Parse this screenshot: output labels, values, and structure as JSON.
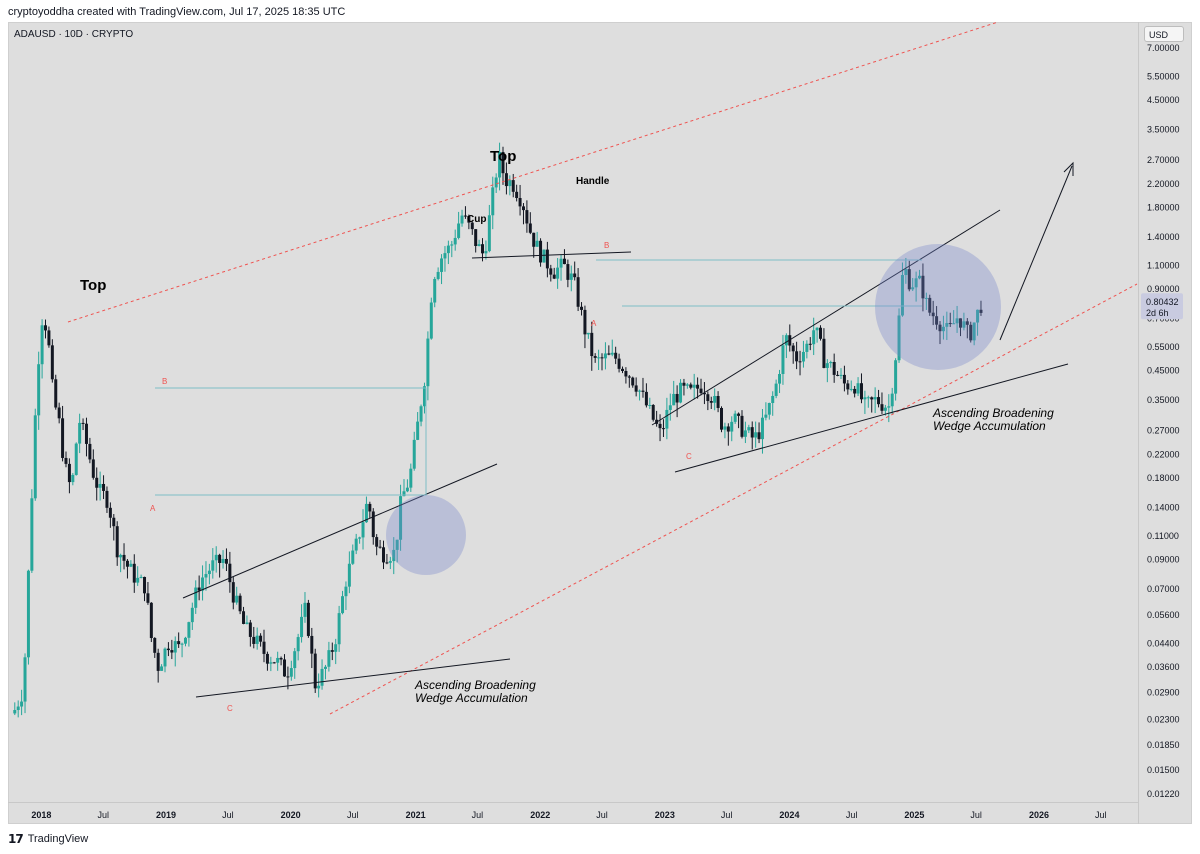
{
  "header": {
    "text": "cryptoyoddha created with TradingView.com, Jul 17, 2025 18:35 UTC"
  },
  "symbol": {
    "label": "ADAUSD · 10D · CRYPTO"
  },
  "price_axis": {
    "currency": "USD"
  },
  "current_price": {
    "value": "0.80432",
    "countdown": "2d 6h"
  },
  "footer": {
    "logo_mark": "17",
    "brand": "TradingView"
  },
  "colors": {
    "background": "#dedede",
    "up_candle": "#26a69a",
    "down_candle": "#131722",
    "channel_line": "#ef5350",
    "trend_line": "#131722",
    "highlight_circle": "#7986cb",
    "box_line": "#7fbfc6"
  },
  "chart_data": {
    "type": "candlestick",
    "y_scale": "log",
    "ylim": [
      0.0116,
      8.6
    ],
    "y_ticks": [
      7.0,
      5.5,
      4.5,
      3.5,
      2.7,
      2.2,
      1.8,
      1.4,
      1.1,
      0.9,
      0.7,
      0.55,
      0.45,
      0.35,
      0.27,
      0.22,
      0.18,
      0.14,
      0.11,
      0.09,
      0.07,
      0.056,
      0.044,
      0.036,
      0.029,
      0.023,
      0.0185,
      0.015,
      0.0122
    ],
    "y_tick_labels": [
      "7.00000",
      "5.50000",
      "4.50000",
      "3.50000",
      "2.70000",
      "2.20000",
      "1.80000",
      "1.40000",
      "1.10000",
      "0.90000",
      "0.70000",
      "0.55000",
      "0.45000",
      "0.35000",
      "0.27000",
      "0.22000",
      "0.18000",
      "0.14000",
      "0.11000",
      "0.09000",
      "0.07000",
      "0.05600",
      "0.04400",
      "0.03600",
      "0.02900",
      "0.02300",
      "0.01850",
      "0.01500",
      "0.01220"
    ],
    "x_ticks": [
      "2018-01-01",
      "2018-07-01",
      "2019-01-01",
      "2019-07-01",
      "2020-01-01",
      "2020-07-01",
      "2021-01-01",
      "2021-07-01",
      "2022-01-01",
      "2022-07-01",
      "2023-01-01",
      "2023-07-01",
      "2024-01-01",
      "2024-07-01",
      "2025-01-01",
      "2025-07-01",
      "2026-01-01",
      "2026-07-01"
    ],
    "x_tick_labels": [
      "2018",
      "Jul",
      "2019",
      "Jul",
      "2020",
      "Jul",
      "2021",
      "Jul",
      "2022",
      "Jul",
      "2023",
      "Jul",
      "2024",
      "Jul",
      "2025",
      "Jul",
      "2026",
      "Jul"
    ],
    "bold_x_labels": [
      "2018",
      "2019",
      "2020",
      "2021",
      "2022",
      "2023",
      "2024",
      "2025",
      "2026"
    ],
    "x_range": [
      "2017-10-01",
      "2026-10-15"
    ],
    "closes": [
      [
        "2017-10-15",
        0.025
      ],
      [
        "2017-11-10",
        0.03
      ],
      [
        "2017-12-01",
        0.13
      ],
      [
        "2017-12-20",
        0.45
      ],
      [
        "2018-01-05",
        0.75
      ],
      [
        "2018-01-20",
        0.6
      ],
      [
        "2018-02-05",
        0.35
      ],
      [
        "2018-02-20",
        0.3
      ],
      [
        "2018-03-10",
        0.2
      ],
      [
        "2018-03-30",
        0.16
      ],
      [
        "2018-04-20",
        0.3
      ],
      [
        "2018-05-10",
        0.25
      ],
      [
        "2018-06-01",
        0.19
      ],
      [
        "2018-06-20",
        0.16
      ],
      [
        "2018-07-15",
        0.15
      ],
      [
        "2018-08-10",
        0.1
      ],
      [
        "2018-09-10",
        0.085
      ],
      [
        "2018-10-10",
        0.075
      ],
      [
        "2018-11-01",
        0.072
      ],
      [
        "2018-11-20",
        0.045
      ],
      [
        "2018-12-10",
        0.036
      ],
      [
        "2019-01-10",
        0.045
      ],
      [
        "2019-02-10",
        0.042
      ],
      [
        "2019-03-10",
        0.055
      ],
      [
        "2019-04-10",
        0.075
      ],
      [
        "2019-05-15",
        0.085
      ],
      [
        "2019-06-20",
        0.09
      ],
      [
        "2019-07-20",
        0.065
      ],
      [
        "2019-08-20",
        0.05
      ],
      [
        "2019-09-20",
        0.045
      ],
      [
        "2019-10-20",
        0.04
      ],
      [
        "2019-11-20",
        0.038
      ],
      [
        "2019-12-20",
        0.034
      ],
      [
        "2020-01-20",
        0.045
      ],
      [
        "2020-02-15",
        0.06
      ],
      [
        "2020-03-12",
        0.031
      ],
      [
        "2020-04-10",
        0.035
      ],
      [
        "2020-05-10",
        0.045
      ],
      [
        "2020-06-10",
        0.075
      ],
      [
        "2020-07-10",
        0.1
      ],
      [
        "2020-08-15",
        0.15
      ],
      [
        "2020-09-05",
        0.1
      ],
      [
        "2020-10-01",
        0.095
      ],
      [
        "2020-11-01",
        0.095
      ],
      [
        "2020-11-20",
        0.15
      ],
      [
        "2020-12-15",
        0.18
      ],
      [
        "2021-01-10",
        0.3
      ],
      [
        "2021-01-30",
        0.45
      ],
      [
        "2021-02-20",
        1.0
      ],
      [
        "2021-03-20",
        1.2
      ],
      [
        "2021-04-15",
        1.3
      ],
      [
        "2021-05-15",
        1.7
      ],
      [
        "2021-06-10",
        1.5
      ],
      [
        "2021-07-01",
        1.3
      ],
      [
        "2021-07-20",
        1.2
      ],
      [
        "2021-08-10",
        1.8
      ],
      [
        "2021-09-01",
        2.8
      ],
      [
        "2021-09-20",
        2.3
      ],
      [
        "2021-10-15",
        2.2
      ],
      [
        "2021-11-10",
        1.9
      ],
      [
        "2021-12-01",
        1.5
      ],
      [
        "2021-12-20",
        1.3
      ],
      [
        "2022-01-15",
        1.15
      ],
      [
        "2022-02-10",
        1.05
      ],
      [
        "2022-03-10",
        1.1
      ],
      [
        "2022-04-10",
        0.95
      ],
      [
        "2022-05-10",
        0.65
      ],
      [
        "2022-06-10",
        0.48
      ],
      [
        "2022-07-10",
        0.5
      ],
      [
        "2022-08-10",
        0.5
      ],
      [
        "2022-09-10",
        0.45
      ],
      [
        "2022-10-10",
        0.4
      ],
      [
        "2022-11-10",
        0.33
      ],
      [
        "2022-12-20",
        0.26
      ],
      [
        "2023-01-20",
        0.35
      ],
      [
        "2023-02-20",
        0.38
      ],
      [
        "2023-03-20",
        0.37
      ],
      [
        "2023-04-20",
        0.4
      ],
      [
        "2023-05-20",
        0.36
      ],
      [
        "2023-06-20",
        0.28
      ],
      [
        "2023-07-20",
        0.3
      ],
      [
        "2023-08-20",
        0.27
      ],
      [
        "2023-09-20",
        0.25
      ],
      [
        "2023-10-20",
        0.29
      ],
      [
        "2023-11-20",
        0.38
      ],
      [
        "2023-12-20",
        0.6
      ],
      [
        "2024-01-20",
        0.5
      ],
      [
        "2024-02-20",
        0.55
      ],
      [
        "2024-03-15",
        0.65
      ],
      [
        "2024-04-10",
        0.5
      ],
      [
        "2024-05-10",
        0.45
      ],
      [
        "2024-06-10",
        0.4
      ],
      [
        "2024-07-10",
        0.4
      ],
      [
        "2024-08-10",
        0.33
      ],
      [
        "2024-09-10",
        0.35
      ],
      [
        "2024-10-20",
        0.33
      ],
      [
        "2024-11-10",
        0.55
      ],
      [
        "2024-11-30",
        1.1
      ],
      [
        "2024-12-20",
        0.95
      ],
      [
        "2025-01-20",
        0.95
      ],
      [
        "2025-02-10",
        0.75
      ],
      [
        "2025-03-10",
        0.7
      ],
      [
        "2025-04-10",
        0.62
      ],
      [
        "2025-05-10",
        0.72
      ],
      [
        "2025-06-10",
        0.6
      ],
      [
        "2025-07-17",
        0.80432
      ]
    ],
    "annotations": [
      {
        "text": "Top"
      },
      {
        "text": "Top"
      },
      {
        "text": "Cup"
      },
      {
        "text": "Handle"
      },
      {
        "text": "Ascending Broadening\nWedge Accumulation"
      },
      {
        "text": "Ascending Broadening\nWedge Accumulation"
      }
    ],
    "wave_labels": [
      "B",
      "A",
      "C",
      "B",
      "A",
      "C"
    ],
    "legend": "none",
    "grid": false
  }
}
